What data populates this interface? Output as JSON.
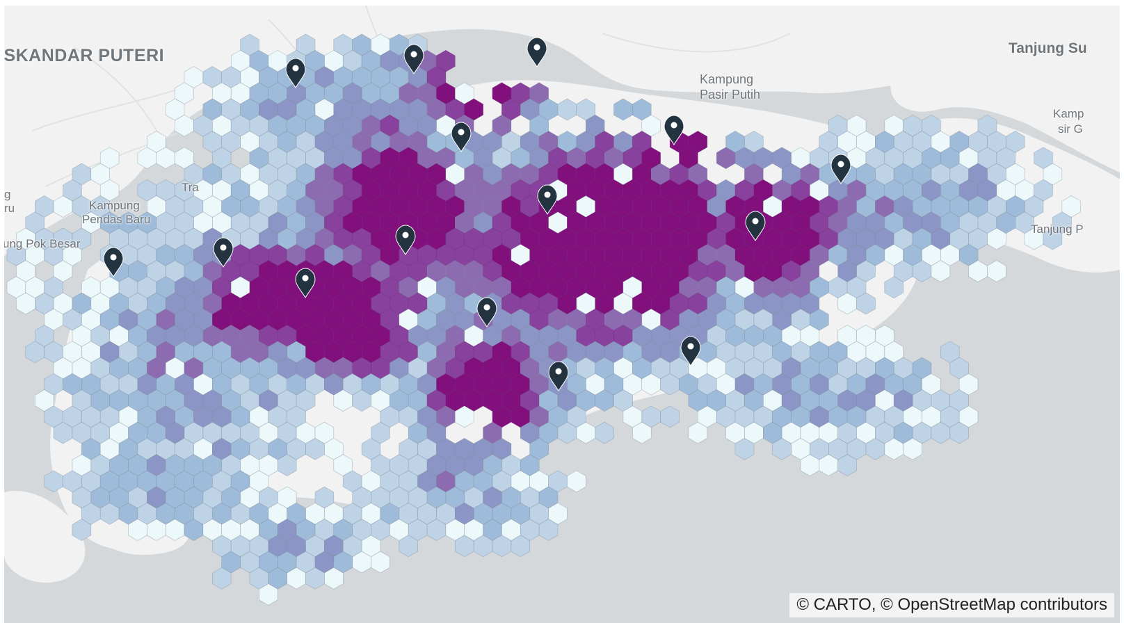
{
  "map": {
    "basemap": "carto-light",
    "water_color": "#d4d8da",
    "land_color": "#f2f2f2",
    "hex_colors": [
      "#edf8fb",
      "#bfd3e6",
      "#9ebcda",
      "#8c96c6",
      "#8c6bb1",
      "#88419d",
      "#810f7c"
    ],
    "marker_color": "#233340",
    "marker_icon": "map-pin-icon"
  },
  "labels": {
    "iskandar": "ISKANDAR PUTERI",
    "tanjung_su": "Tanjung Su",
    "kampung_pasir_putih_1": "Kampung",
    "kampung_pasir_putih_2": "Pasir Putih",
    "kampung_pendas_1": "Kampung",
    "kampung_pendas_2": "Pendas Baru",
    "pok_besar": "ung Pok Besar",
    "tra": "Tra",
    "left_g": "g",
    "left_ru": "ru",
    "kampung_right_1": "Kamp",
    "kampung_right_2": "sir G",
    "tanjung_p": "Tanjung P"
  },
  "attribution": "© CARTO, © OpenStreetMap contributors"
}
